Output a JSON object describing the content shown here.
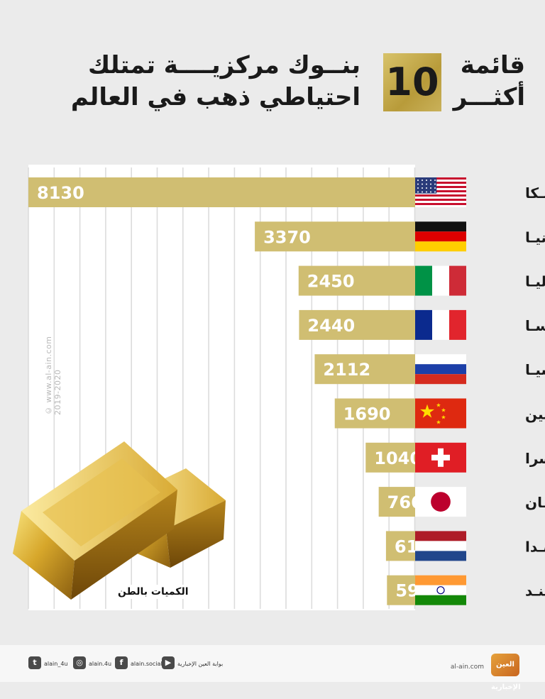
{
  "header": {
    "main_line1": "بنــوك مركزيــــة تمتلك",
    "main_line2": "احتياطي ذهب في العالم",
    "badge": "10",
    "side_line1": "قائمة",
    "side_line2": "أكثـــر"
  },
  "unit_label": "الكميات بالطن",
  "watermark": "© www.al-ain.com 2019-2020",
  "footer": {
    "twitter": "alain_4u",
    "instagram": "alain.4u",
    "facebook": "alain.social",
    "youtube": "بوابة العين الإخبارية",
    "site": "al-ain.com",
    "logo": "العين الإخبارية"
  },
  "colors": {
    "bar": "#d0be72",
    "gold": "#c9a536",
    "text": "#1a1a1a"
  },
  "chart_data": {
    "type": "bar",
    "orientation": "horizontal",
    "categories": [
      "أمريـكا",
      "ألمانيـا",
      "إيطاليـا",
      "فرنسـا",
      "روسيـا",
      "الصين",
      "سويسرا",
      "اليابـان",
      "هولنـدا",
      "الهنـد"
    ],
    "flags": [
      "us",
      "de",
      "it",
      "fr",
      "ru",
      "cn",
      "ch",
      "jp",
      "nl",
      "in"
    ],
    "values": [
      8130,
      3370,
      2450,
      2440,
      2112,
      1690,
      1040,
      766,
      613,
      592
    ],
    "title": "",
    "xlabel": "",
    "ylabel": "",
    "grid": true,
    "legend": "none"
  }
}
